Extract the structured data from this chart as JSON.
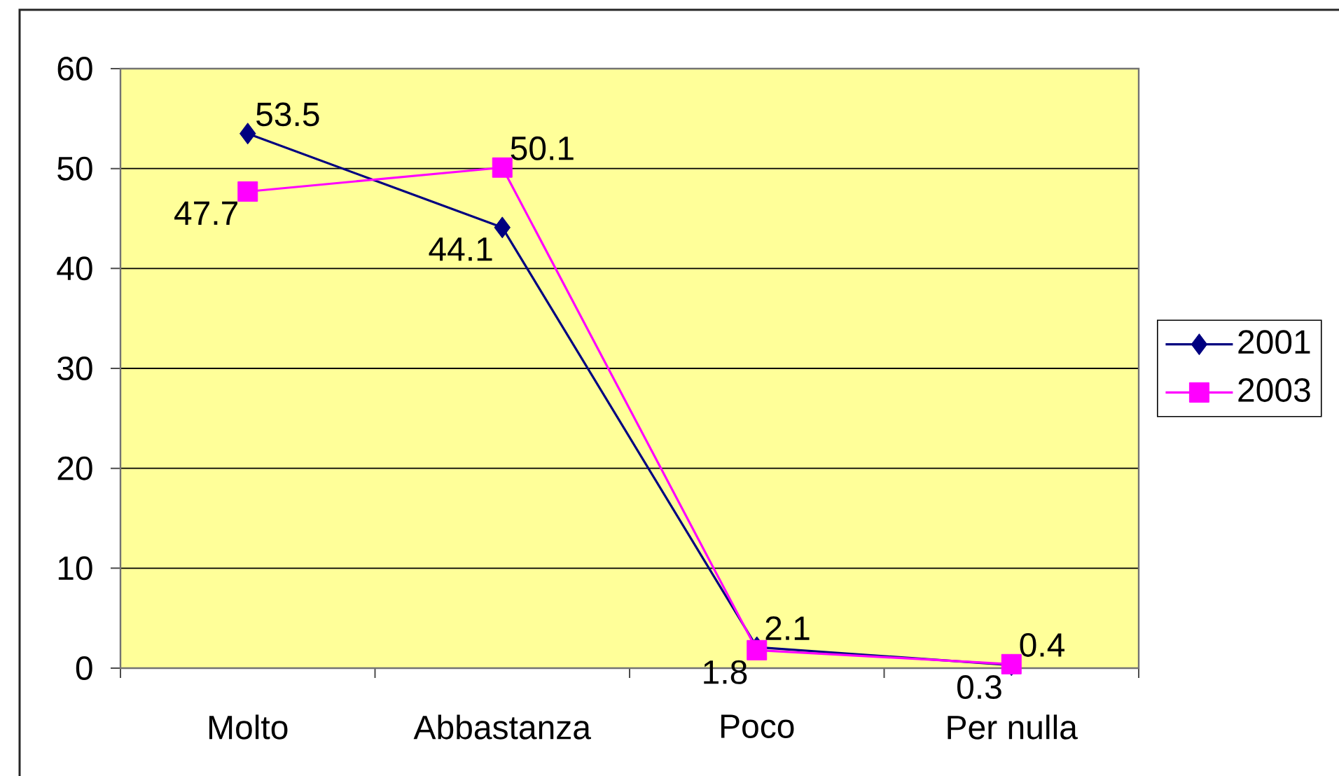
{
  "chart_data": {
    "type": "line",
    "categories": [
      "Molto",
      "Abbastanza",
      "Poco",
      "Per nulla"
    ],
    "series": [
      {
        "name": "2001",
        "color": "#000080",
        "marker": "diamond",
        "values": [
          53.5,
          44.1,
          2.1,
          0.3
        ]
      },
      {
        "name": "2003",
        "color": "#ff00ff",
        "marker": "square",
        "values": [
          47.7,
          50.1,
          1.8,
          0.4
        ]
      }
    ],
    "ylim": [
      0,
      60
    ],
    "yticks": [
      0,
      10,
      20,
      30,
      40,
      50,
      60
    ],
    "grid": "y",
    "legend": "right",
    "data_labels": true,
    "line_style": "solid"
  }
}
